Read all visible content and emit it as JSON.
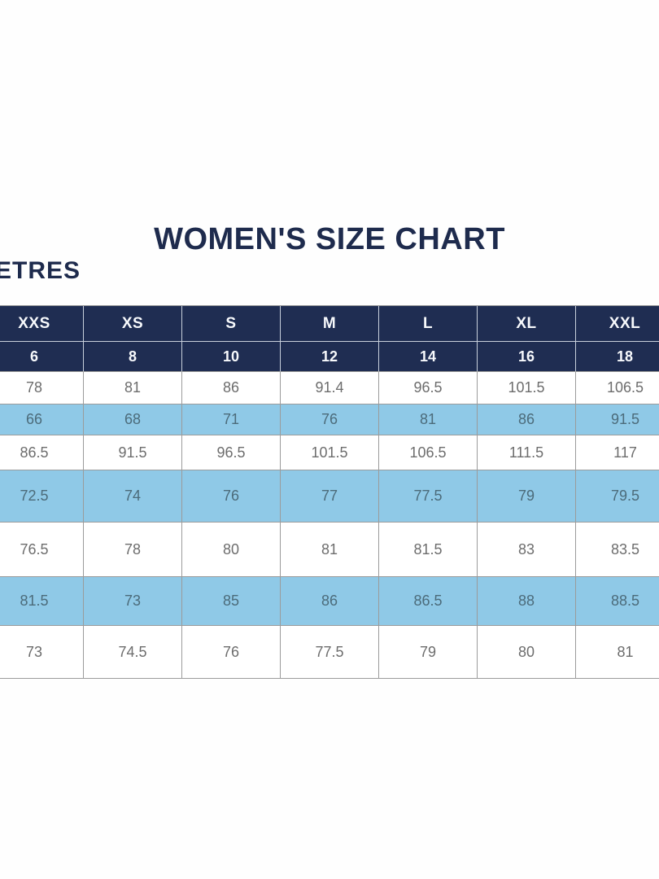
{
  "title": "WOMEN'S SIZE CHART",
  "units_label": "ETRES",
  "colors": {
    "navy_header": "#1f2d52",
    "light_blue_row": "#8fc9e7",
    "title_text": "#1e2b4d",
    "value_text": "#6d6d6d",
    "shaded_value_text": "#4c6b7a",
    "header_text": "#ffffff",
    "grid_line": "#9b9b9b",
    "header_grid_line": "#c8d0dc"
  },
  "chart_data": {
    "type": "table",
    "title": "WOMEN'S SIZE CHART",
    "units_label_visible": "ETRES",
    "size_labels": [
      "XXS",
      "XS",
      "S",
      "M",
      "L",
      "XL",
      "XXL"
    ],
    "numeric_sizes": [
      "6",
      "8",
      "10",
      "12",
      "14",
      "16",
      "18"
    ],
    "rows": [
      {
        "shaded": false,
        "values": [
          "78",
          "81",
          "86",
          "91.4",
          "96.5",
          "101.5",
          "106.5"
        ]
      },
      {
        "shaded": true,
        "values": [
          "66",
          "68",
          "71",
          "76",
          "81",
          "86",
          "91.5"
        ]
      },
      {
        "shaded": false,
        "values": [
          "86.5",
          "91.5",
          "96.5",
          "101.5",
          "106.5",
          "111.5",
          "117"
        ]
      },
      {
        "shaded": true,
        "values": [
          "72.5",
          "74",
          "76",
          "77",
          "77.5",
          "79",
          "79.5"
        ]
      },
      {
        "shaded": false,
        "values": [
          "76.5",
          "78",
          "80",
          "81",
          "81.5",
          "83",
          "83.5"
        ]
      },
      {
        "shaded": true,
        "values": [
          "81.5",
          "73",
          "85",
          "86",
          "86.5",
          "88",
          "88.5"
        ]
      },
      {
        "shaded": false,
        "values": [
          "73",
          "74.5",
          "76",
          "77.5",
          "79",
          "80",
          "81"
        ]
      }
    ],
    "layout_hints": {
      "table_cropped_left": true,
      "table_cropped_right": true,
      "units_label_cropped_left": true
    }
  }
}
